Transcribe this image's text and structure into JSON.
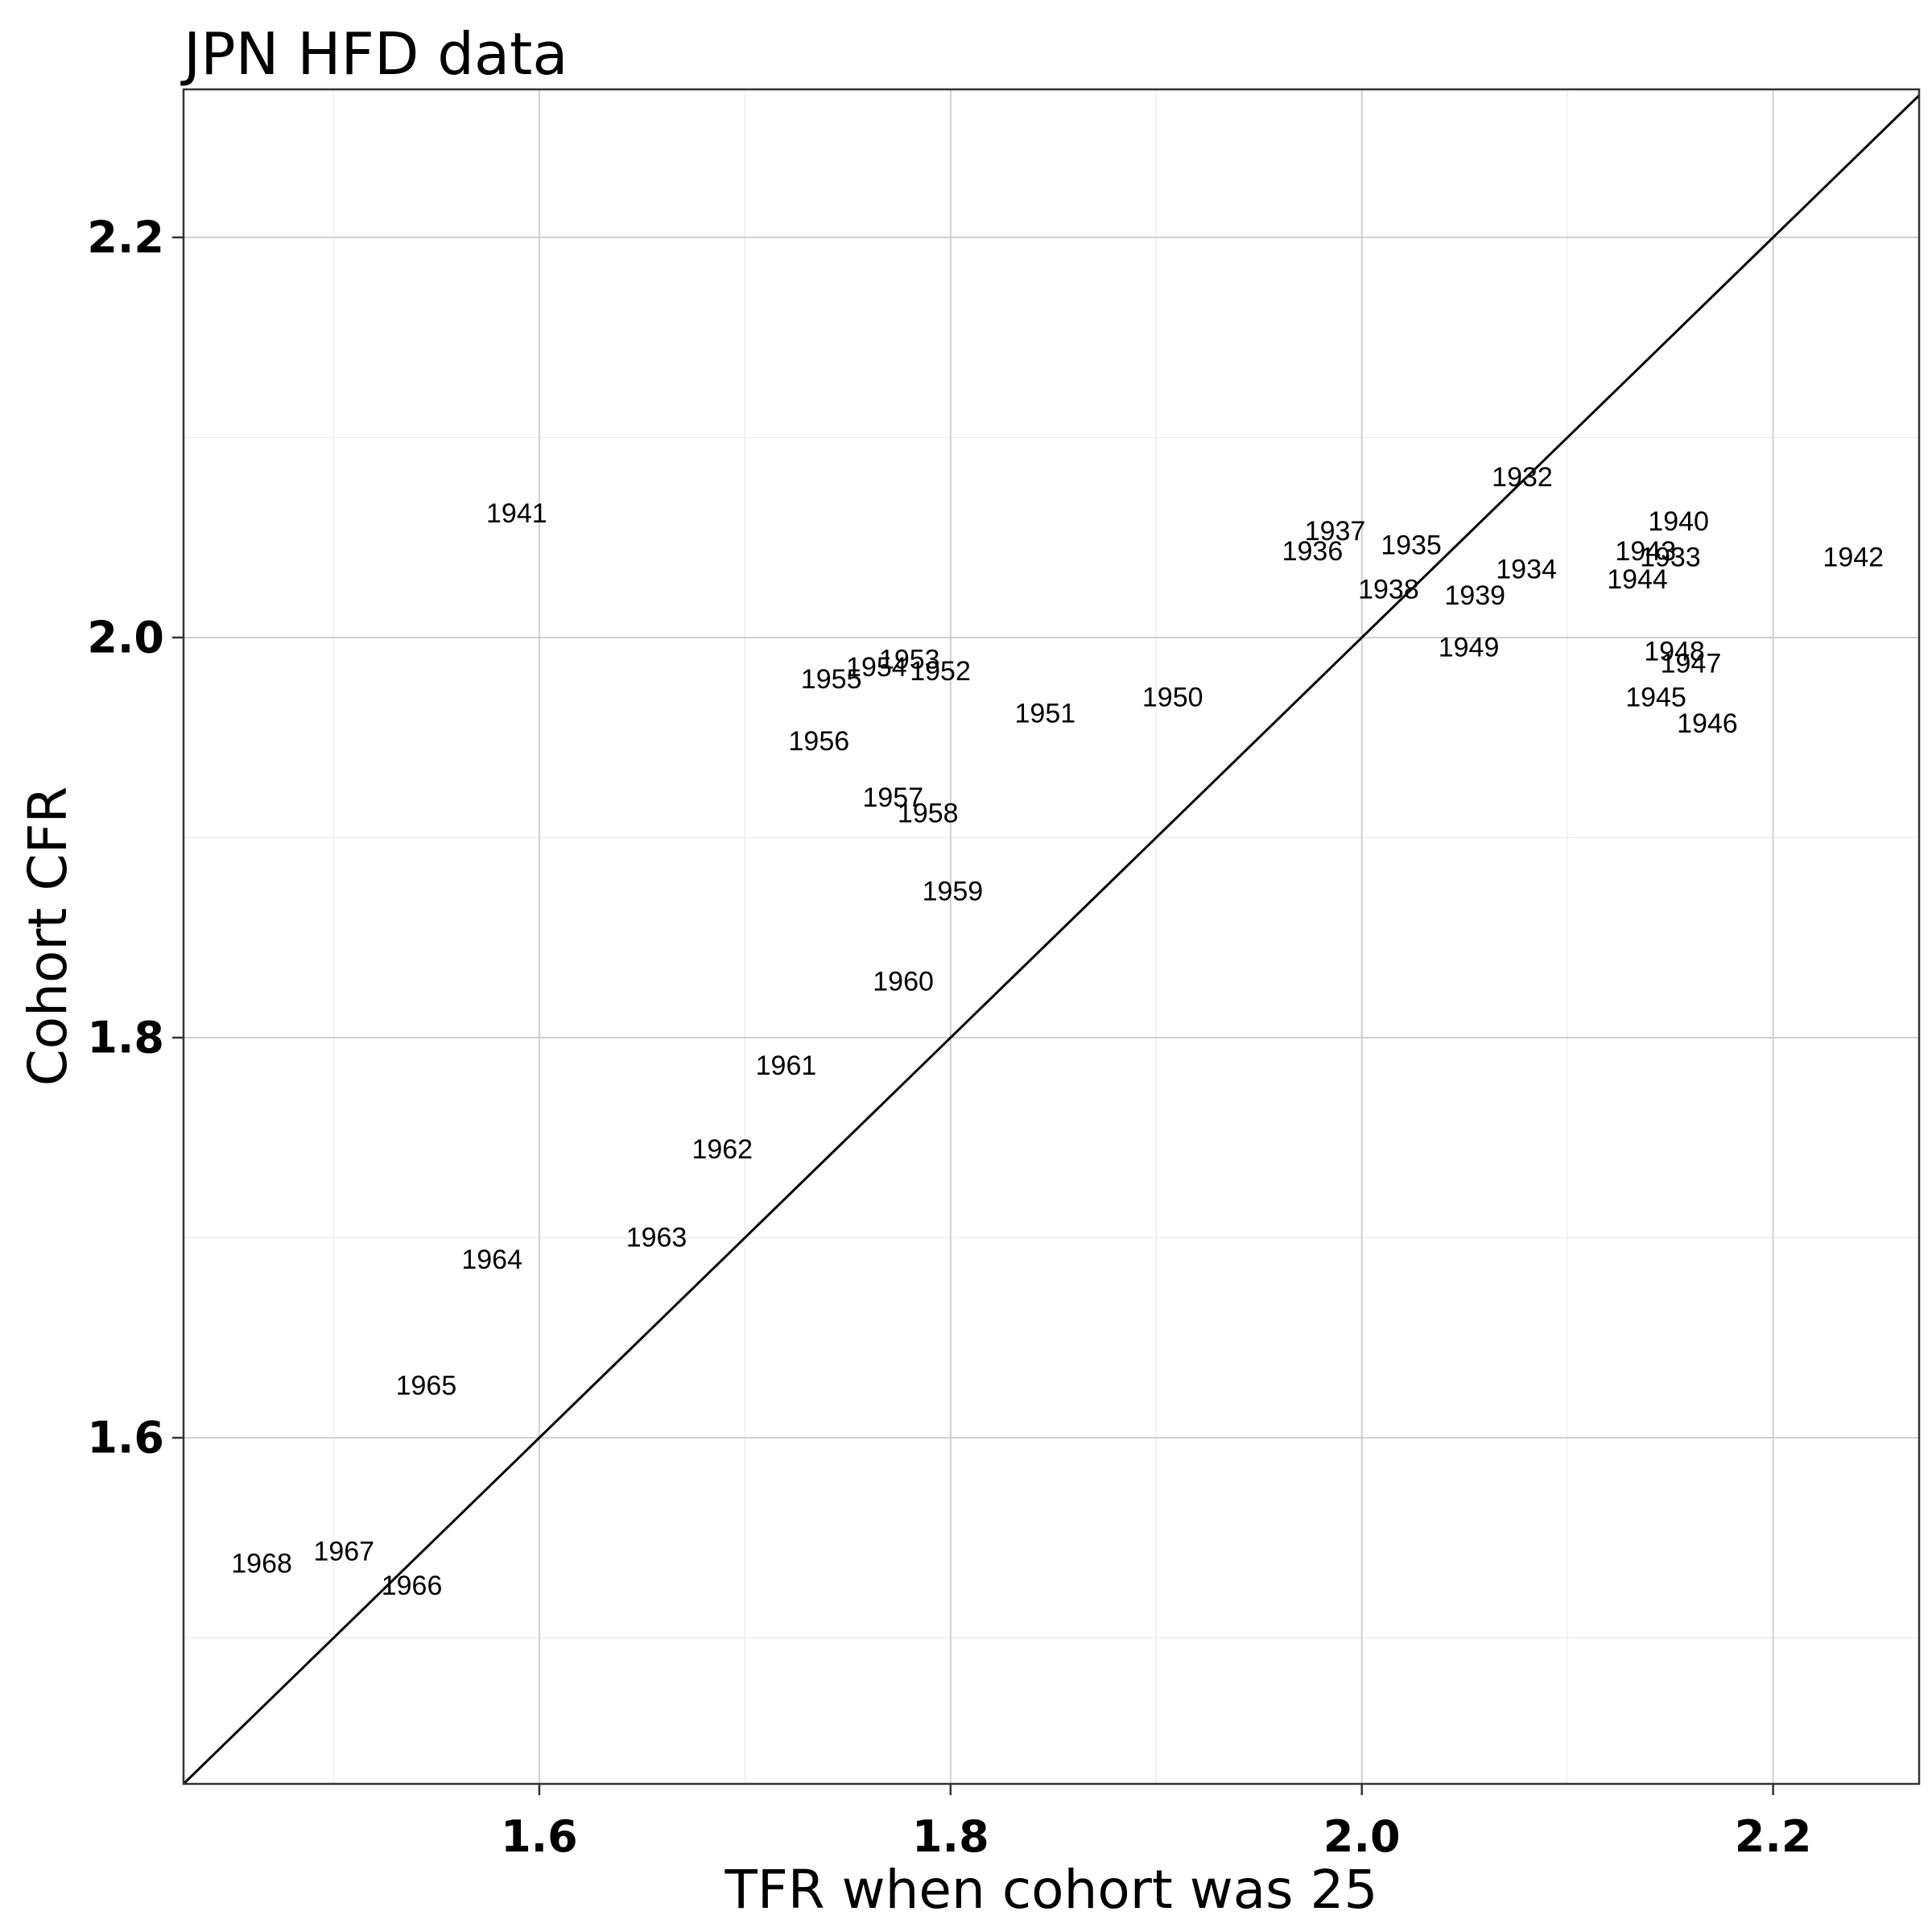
{
  "chart_data": {
    "type": "scatter",
    "title": "JPN HFD data",
    "xlabel": "TFR when cohort was 25",
    "ylabel": "Cohort CFR",
    "xlim": [
      1.427,
      2.271
    ],
    "ylim": [
      1.427,
      2.274
    ],
    "x_ticks": [
      1.6,
      1.8,
      2.0,
      2.2
    ],
    "y_ticks": [
      1.6,
      1.8,
      2.0,
      2.2
    ],
    "x_tick_labels": [
      "1.6",
      "1.8",
      "2.0",
      "2.2"
    ],
    "y_tick_labels": [
      "1.6",
      "1.8",
      "2.0",
      "2.2"
    ],
    "grid": true,
    "reference_line": "y = x",
    "point_style": "text labels (cohort birth year)",
    "points": [
      {
        "label": "1932",
        "x": 2.078,
        "y": 2.08
      },
      {
        "label": "1933",
        "x": 2.15,
        "y": 2.04
      },
      {
        "label": "1934",
        "x": 2.08,
        "y": 2.034
      },
      {
        "label": "1935",
        "x": 2.024,
        "y": 2.046
      },
      {
        "label": "1936",
        "x": 1.976,
        "y": 2.043
      },
      {
        "label": "1937",
        "x": 1.987,
        "y": 2.053
      },
      {
        "label": "1938",
        "x": 2.013,
        "y": 2.024
      },
      {
        "label": "1939",
        "x": 2.055,
        "y": 2.021
      },
      {
        "label": "1940",
        "x": 2.154,
        "y": 2.058
      },
      {
        "label": "1941",
        "x": 1.589,
        "y": 2.062
      },
      {
        "label": "1942",
        "x": 2.239,
        "y": 2.04
      },
      {
        "label": "1943",
        "x": 2.138,
        "y": 2.043
      },
      {
        "label": "1944",
        "x": 2.134,
        "y": 2.029
      },
      {
        "label": "1945",
        "x": 2.143,
        "y": 1.97
      },
      {
        "label": "1946",
        "x": 2.168,
        "y": 1.957
      },
      {
        "label": "1947",
        "x": 2.16,
        "y": 1.987
      },
      {
        "label": "1948",
        "x": 2.152,
        "y": 1.993
      },
      {
        "label": "1949",
        "x": 2.052,
        "y": 1.995
      },
      {
        "label": "1950",
        "x": 1.908,
        "y": 1.97
      },
      {
        "label": "1951",
        "x": 1.846,
        "y": 1.962
      },
      {
        "label": "1952",
        "x": 1.795,
        "y": 1.983
      },
      {
        "label": "1953",
        "x": 1.78,
        "y": 1.989
      },
      {
        "label": "1954",
        "x": 1.764,
        "y": 1.985
      },
      {
        "label": "1955",
        "x": 1.742,
        "y": 1.979
      },
      {
        "label": "1956",
        "x": 1.736,
        "y": 1.948
      },
      {
        "label": "1957",
        "x": 1.772,
        "y": 1.92
      },
      {
        "label": "1958",
        "x": 1.789,
        "y": 1.912
      },
      {
        "label": "1959",
        "x": 1.801,
        "y": 1.873
      },
      {
        "label": "1960",
        "x": 1.777,
        "y": 1.828
      },
      {
        "label": "1961",
        "x": 1.72,
        "y": 1.786
      },
      {
        "label": "1962",
        "x": 1.689,
        "y": 1.744
      },
      {
        "label": "1963",
        "x": 1.657,
        "y": 1.7
      },
      {
        "label": "1964",
        "x": 1.577,
        "y": 1.689
      },
      {
        "label": "1965",
        "x": 1.545,
        "y": 1.626
      },
      {
        "label": "1966",
        "x": 1.538,
        "y": 1.526
      },
      {
        "label": "1967",
        "x": 1.505,
        "y": 1.543
      },
      {
        "label": "1968",
        "x": 1.465,
        "y": 1.537
      }
    ]
  }
}
